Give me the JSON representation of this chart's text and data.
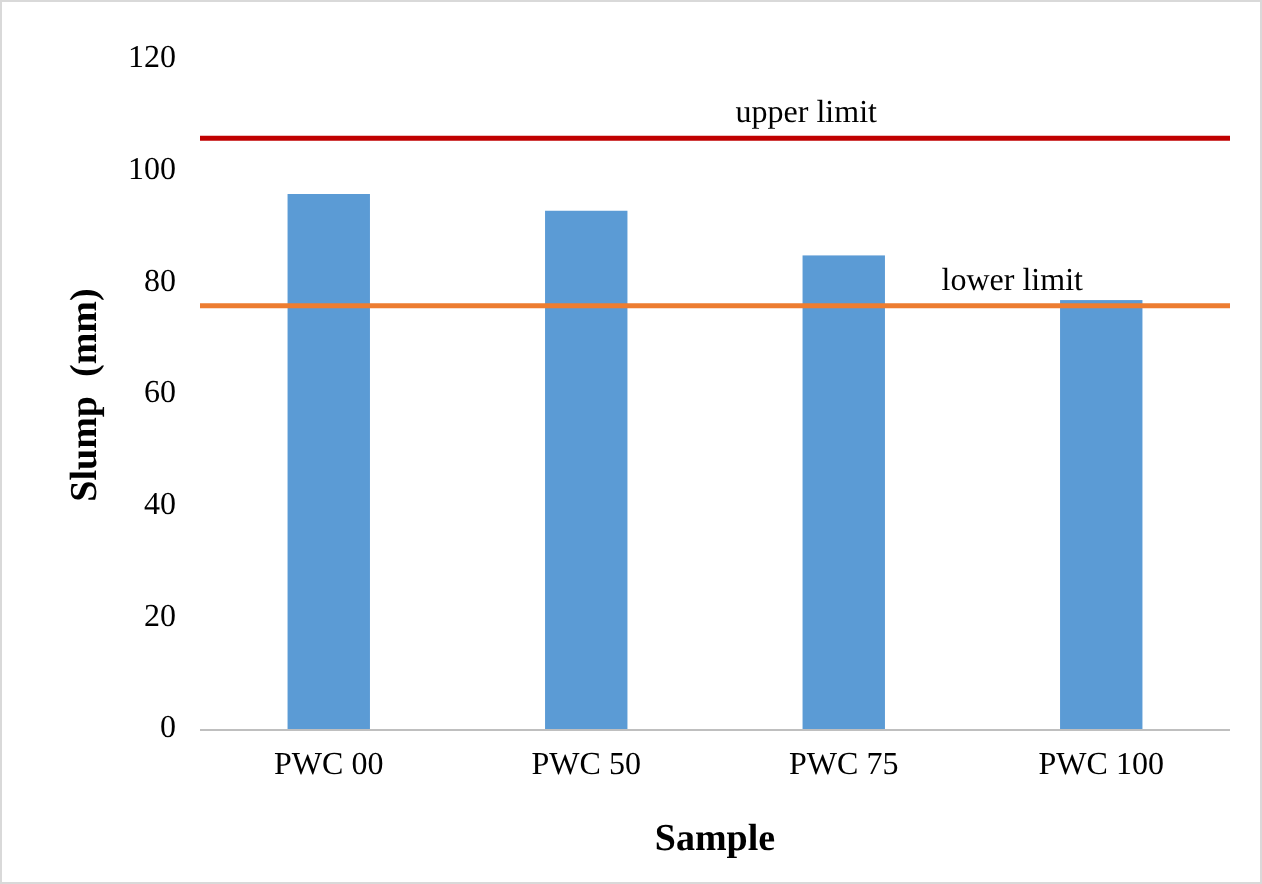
{
  "chart_data": {
    "type": "bar",
    "xlabel": "Sample",
    "ylabel": "Slump  (mm)",
    "categories": [
      "PWC 00",
      "PWC 50",
      "PWC 75",
      "PWC 100"
    ],
    "values": [
      96,
      93,
      85,
      77
    ],
    "color": "#5b9bd5",
    "ylim": [
      0,
      120
    ],
    "yticks": [
      0,
      20,
      40,
      60,
      80,
      100,
      120
    ],
    "grid": false,
    "ref_lines": [
      {
        "axis": "y",
        "value": 106,
        "label": "upper limit",
        "color": "#c00000"
      },
      {
        "axis": "y",
        "value": 76,
        "label": "lower limit",
        "color": "#ed7d31"
      }
    ]
  }
}
